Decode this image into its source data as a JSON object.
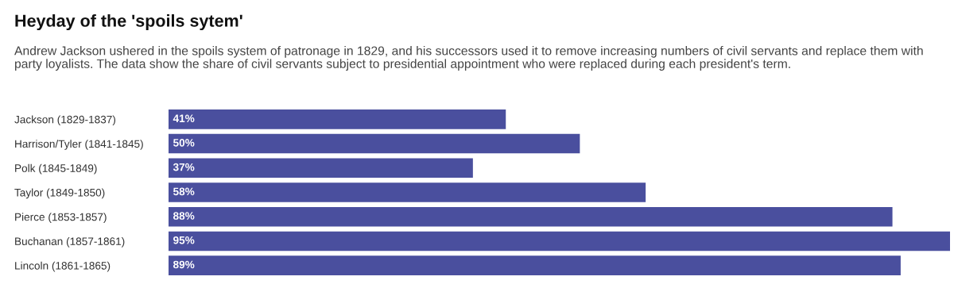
{
  "chart_data": {
    "type": "bar",
    "orientation": "horizontal",
    "title": "Heyday of the 'spoils sytem'",
    "subtitle": "Andrew Jackson ushered in the spoils system of patronage in 1829, and his successors used it to remove increasing numbers of civil servants and replace them with party loyalists. The data show the share of civil servants subject to presidential appointment who were replaced during each president's term.",
    "categories": [
      "Jackson (1829-1837)",
      "Harrison/Tyler (1841-1845)",
      "Polk (1845-1849)",
      "Taylor (1849-1850)",
      "Pierce (1853-1857)",
      "Buchanan (1857-1861)",
      "Lincoln (1861-1865)"
    ],
    "values": [
      41,
      50,
      37,
      58,
      88,
      95,
      89
    ],
    "value_labels": [
      "41%",
      "50%",
      "37%",
      "58%",
      "88%",
      "95%",
      "89%"
    ],
    "color": "#4a4f9e",
    "grid": false,
    "legend": false
  }
}
